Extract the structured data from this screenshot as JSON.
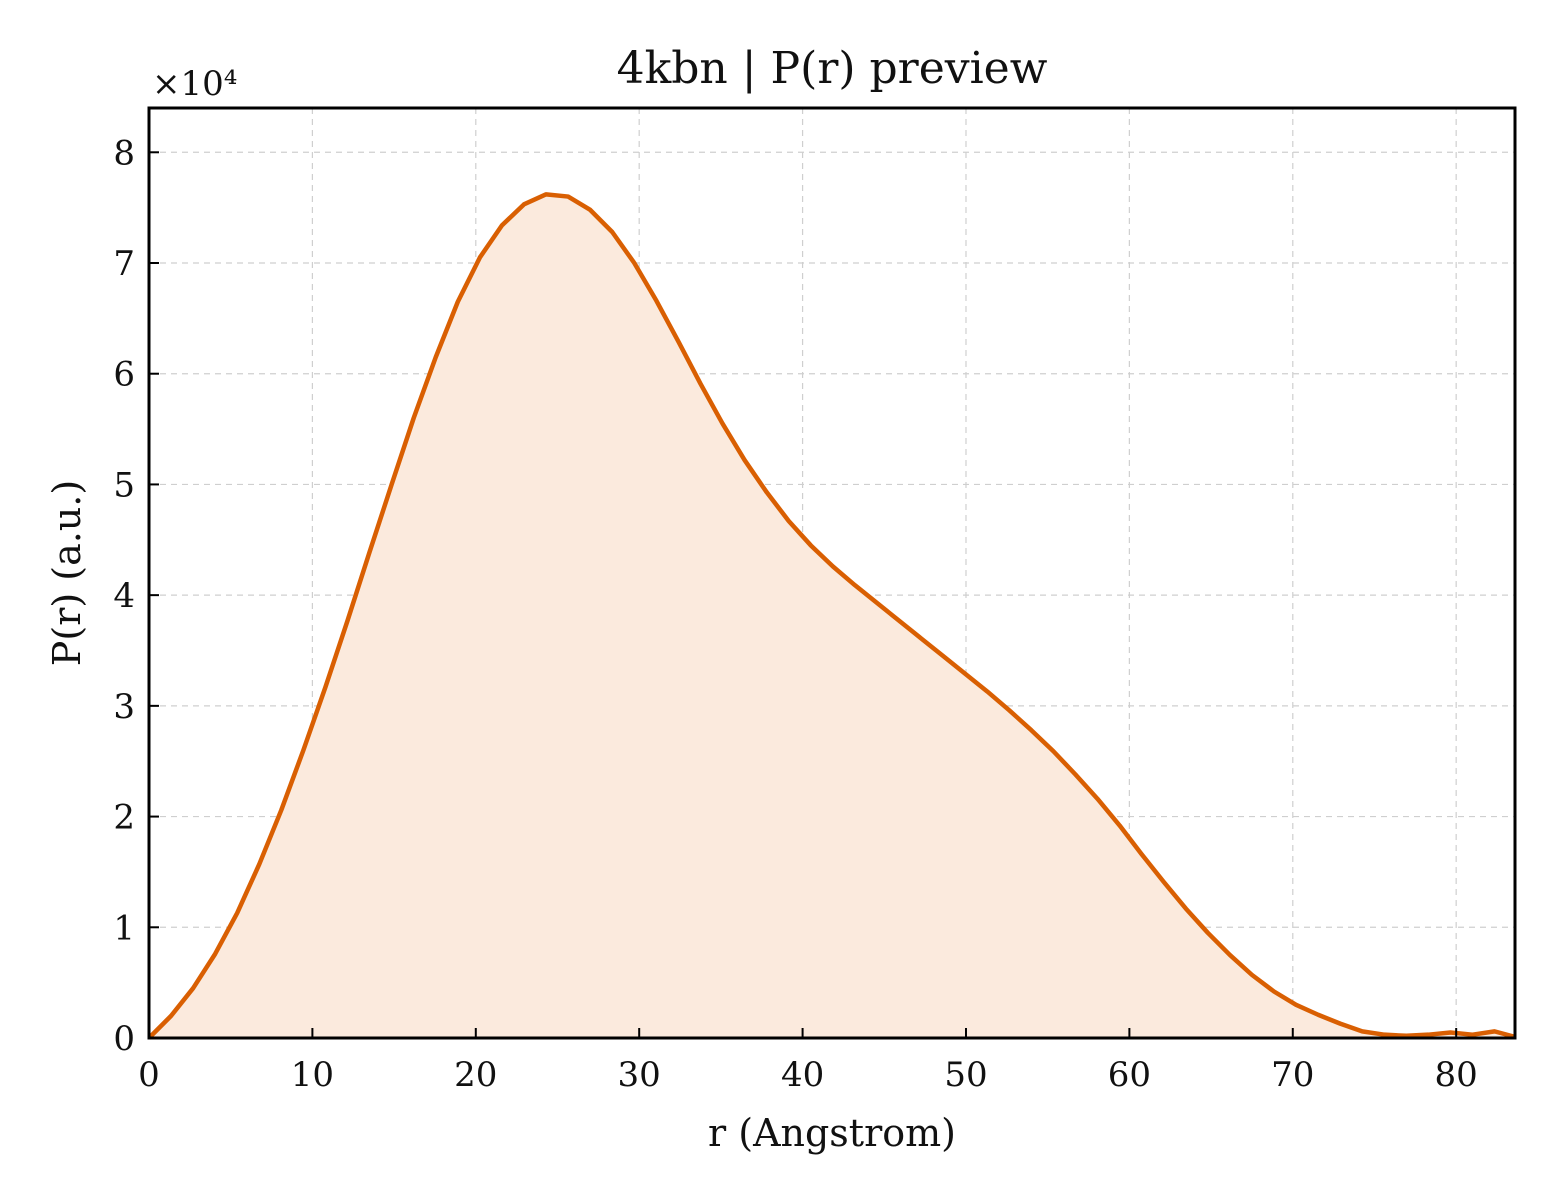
{
  "chart_data": {
    "type": "area",
    "title": "4kbn | P(r) preview",
    "xlabel": "r (Angstrom)",
    "ylabel": "P(r) (a.u.)",
    "y_scale_label": "×10⁴",
    "xlim": [
      0,
      83.6
    ],
    "ylim": [
      0,
      8.4
    ],
    "xticks": [
      0,
      10,
      20,
      30,
      40,
      50,
      60,
      70,
      80
    ],
    "yticks": [
      0,
      1,
      2,
      3,
      4,
      5,
      6,
      7,
      8
    ],
    "grid": true,
    "line_color": "#d95f02",
    "fill_color": "#fbeadd",
    "series": [
      {
        "x": [
          0,
          1.35,
          2.7,
          4.05,
          5.4,
          6.75,
          8.1,
          9.45,
          10.8,
          12.15,
          13.5,
          14.85,
          16.2,
          17.55,
          18.9,
          20.25,
          21.6,
          22.95,
          24.3,
          25.65,
          27.0,
          28.35,
          29.7,
          31.05,
          32.4,
          33.75,
          35.1,
          36.45,
          37.8,
          39.15,
          40.5,
          41.85,
          43.2,
          44.55,
          45.9,
          47.25,
          48.6,
          49.95,
          51.3,
          52.65,
          54.0,
          55.35,
          56.7,
          58.05,
          59.4,
          60.75,
          62.1,
          63.45,
          64.8,
          66.15,
          67.5,
          68.85,
          70.2,
          71.55,
          72.9,
          74.25,
          75.6,
          76.95,
          78.3,
          79.65,
          81.0,
          82.35,
          83.6
        ],
        "y": [
          0,
          0.2,
          0.45,
          0.76,
          1.13,
          1.57,
          2.06,
          2.6,
          3.17,
          3.77,
          4.39,
          5.0,
          5.6,
          6.15,
          6.65,
          7.05,
          7.34,
          7.53,
          7.62,
          7.6,
          7.48,
          7.28,
          7.0,
          6.66,
          6.29,
          5.91,
          5.55,
          5.22,
          4.93,
          4.67,
          4.45,
          4.26,
          4.09,
          3.93,
          3.77,
          3.61,
          3.45,
          3.29,
          3.13,
          2.96,
          2.78,
          2.59,
          2.38,
          2.16,
          1.92,
          1.66,
          1.41,
          1.17,
          0.95,
          0.75,
          0.57,
          0.42,
          0.3,
          0.21,
          0.13,
          0.06,
          0.03,
          0.02,
          0.03,
          0.05,
          0.03,
          0.06,
          0.01
        ]
      }
    ]
  }
}
